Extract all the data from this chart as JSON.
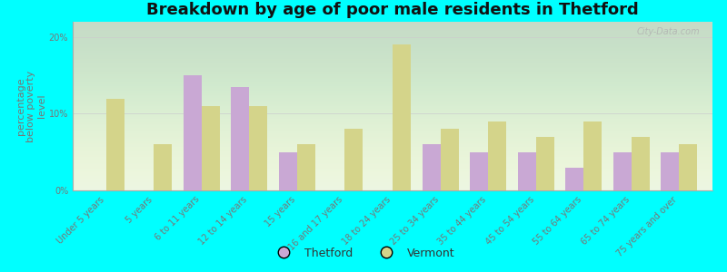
{
  "title": "Breakdown by age of poor male residents in Thetford",
  "ylabel": "percentage\nbelow poverty\nlevel",
  "categories": [
    "Under 5 years",
    "5 years",
    "6 to 11 years",
    "12 to 14 years",
    "15 years",
    "16 and 17 years",
    "18 to 24 years",
    "25 to 34 years",
    "35 to 44 years",
    "45 to 54 years",
    "55 to 64 years",
    "65 to 74 years",
    "75 years and over"
  ],
  "thetford": [
    0,
    0,
    15.0,
    13.5,
    5.0,
    0,
    0,
    6.0,
    5.0,
    5.0,
    3.0,
    5.0,
    5.0
  ],
  "vermont": [
    12.0,
    6.0,
    11.0,
    11.0,
    6.0,
    8.0,
    19.0,
    8.0,
    9.0,
    7.0,
    9.0,
    7.0,
    6.0
  ],
  "thetford_color": "#c9a8d4",
  "vermont_color": "#d4d48a",
  "background_color": "#eaf5e2",
  "outer_background": "#00ffff",
  "ylim": [
    0,
    22
  ],
  "yticks": [
    0,
    10,
    20
  ],
  "ytick_labels": [
    "0%",
    "10%",
    "20%"
  ],
  "bar_width": 0.38,
  "title_fontsize": 13,
  "ylabel_fontsize": 8,
  "tick_fontsize": 7,
  "legend_fontsize": 9,
  "watermark": "City-Data.com"
}
